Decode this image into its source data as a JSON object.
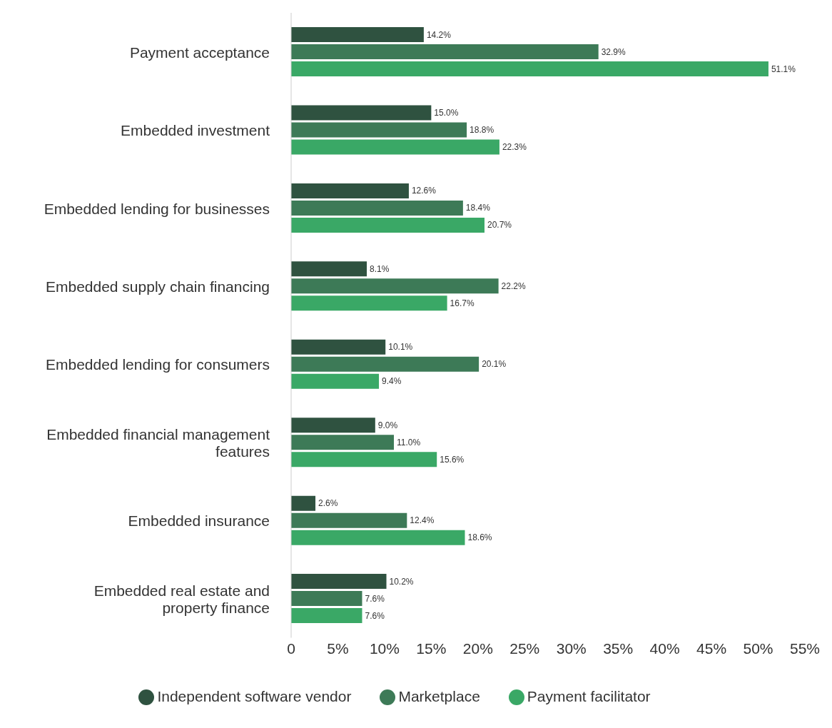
{
  "chart_data": {
    "type": "bar",
    "orientation": "horizontal",
    "categories": [
      "Payment acceptance",
      "Embedded investment",
      "Embedded lending for businesses",
      "Embedded supply chain financing",
      "Embedded lending for consumers",
      "Embedded financial management features",
      "Embedded insurance",
      "Embedded real estate and property finance"
    ],
    "series": [
      {
        "name": "Independent software vendor",
        "color": "#2f5240",
        "values": [
          14.2,
          15.0,
          12.6,
          8.1,
          10.1,
          9.0,
          2.6,
          10.2
        ],
        "value_labels": [
          "14.2%",
          "15.0%",
          "12.6%",
          "8.1%",
          "10.1%",
          "9.0%",
          "2.6%",
          "10.2%"
        ]
      },
      {
        "name": "Marketplace",
        "color": "#3d7a57",
        "values": [
          32.9,
          18.8,
          18.4,
          22.2,
          20.1,
          11.0,
          12.4,
          7.6
        ],
        "value_labels": [
          "32.9%",
          "18.8%",
          "18.4%",
          "22.2%",
          "20.1%",
          "11.0%",
          "12.4%",
          "7.6%"
        ]
      },
      {
        "name": "Payment facilitator",
        "color": "#3aa866",
        "values": [
          51.1,
          22.3,
          20.7,
          16.7,
          9.4,
          15.6,
          18.6,
          7.6
        ],
        "value_labels": [
          "51.1%",
          "22.3%",
          "20.7%",
          "16.7%",
          "9.4%",
          "15.6%",
          "18.6%",
          "7.6%"
        ]
      }
    ],
    "xlim": [
      0,
      55
    ],
    "xticks": [
      0,
      {
        "value": 5,
        "label": "5%"
      },
      {
        "value": 10,
        "label": "10%"
      },
      {
        "value": 15,
        "label": "15%"
      },
      {
        "value": 20,
        "label": "20%"
      },
      {
        "value": 25,
        "label": "25%"
      },
      {
        "value": 30,
        "label": "30%"
      },
      {
        "value": 35,
        "label": "35%"
      },
      {
        "value": 40,
        "label": "40%"
      },
      {
        "value": 45,
        "label": "45%"
      },
      {
        "value": 50,
        "label": "50%"
      },
      {
        "value": 55,
        "label": "55%"
      }
    ],
    "grid": false,
    "legend": "bottom"
  }
}
